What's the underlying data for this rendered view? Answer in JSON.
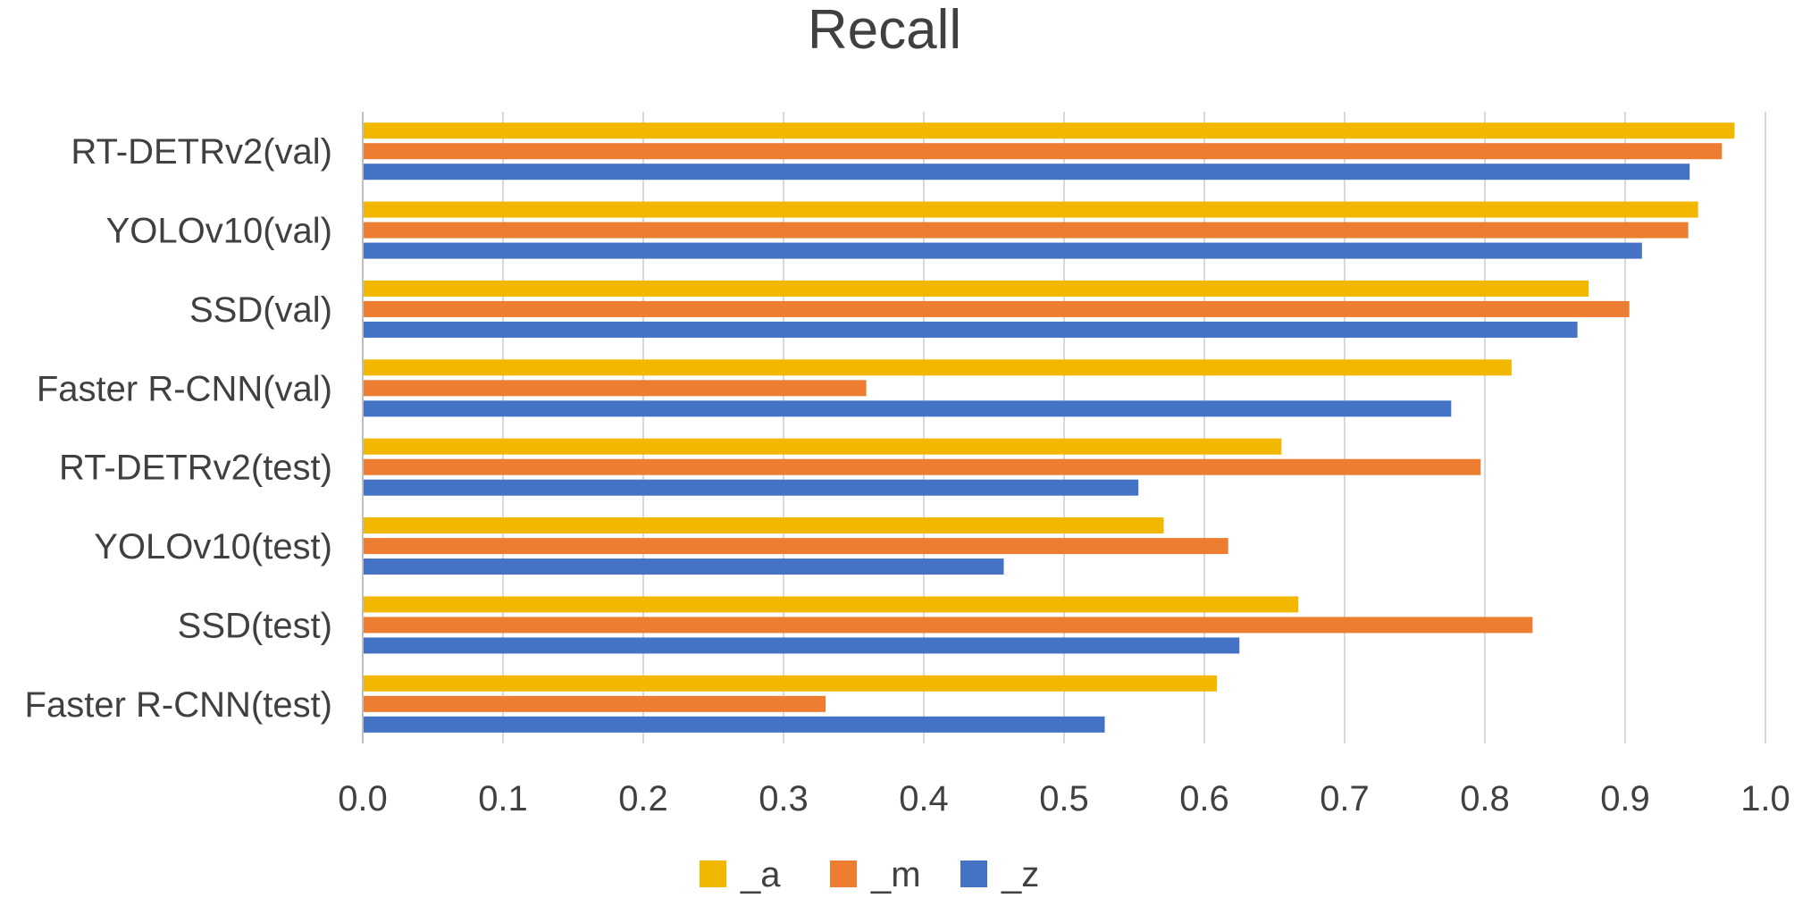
{
  "chart_data": {
    "type": "bar",
    "orientation": "horizontal",
    "title": "Recall",
    "xlabel": "",
    "ylabel": "",
    "xlim": [
      0.0,
      1.0
    ],
    "ticks": [
      "0.0",
      "0.1",
      "0.2",
      "0.3",
      "0.4",
      "0.5",
      "0.6",
      "0.7",
      "0.8",
      "0.9",
      "1.0"
    ],
    "tick_values": [
      0.0,
      0.1,
      0.2,
      0.3,
      0.4,
      0.5,
      0.6,
      0.7,
      0.8,
      0.9,
      1.0
    ],
    "grid": true,
    "legend_position": "bottom",
    "categories": [
      "RT-DETRv2(val)",
      "YOLOv10(val)",
      "SSD(val)",
      "Faster R-CNN(val)",
      "RT-DETRv2(test)",
      "YOLOv10(test)",
      "SSD(test)",
      "Faster R-CNN(test)"
    ],
    "series": [
      {
        "name": "_a",
        "color": "#f2b800",
        "values": [
          0.978,
          0.952,
          0.874,
          0.819,
          0.655,
          0.571,
          0.667,
          0.609
        ]
      },
      {
        "name": "_m",
        "color": "#ed7d31",
        "values": [
          0.969,
          0.945,
          0.903,
          0.359,
          0.797,
          0.617,
          0.834,
          0.33
        ]
      },
      {
        "name": "_z",
        "color": "#4472c4",
        "values": [
          0.946,
          0.912,
          0.866,
          0.776,
          0.553,
          0.457,
          0.625,
          0.529
        ]
      }
    ]
  }
}
